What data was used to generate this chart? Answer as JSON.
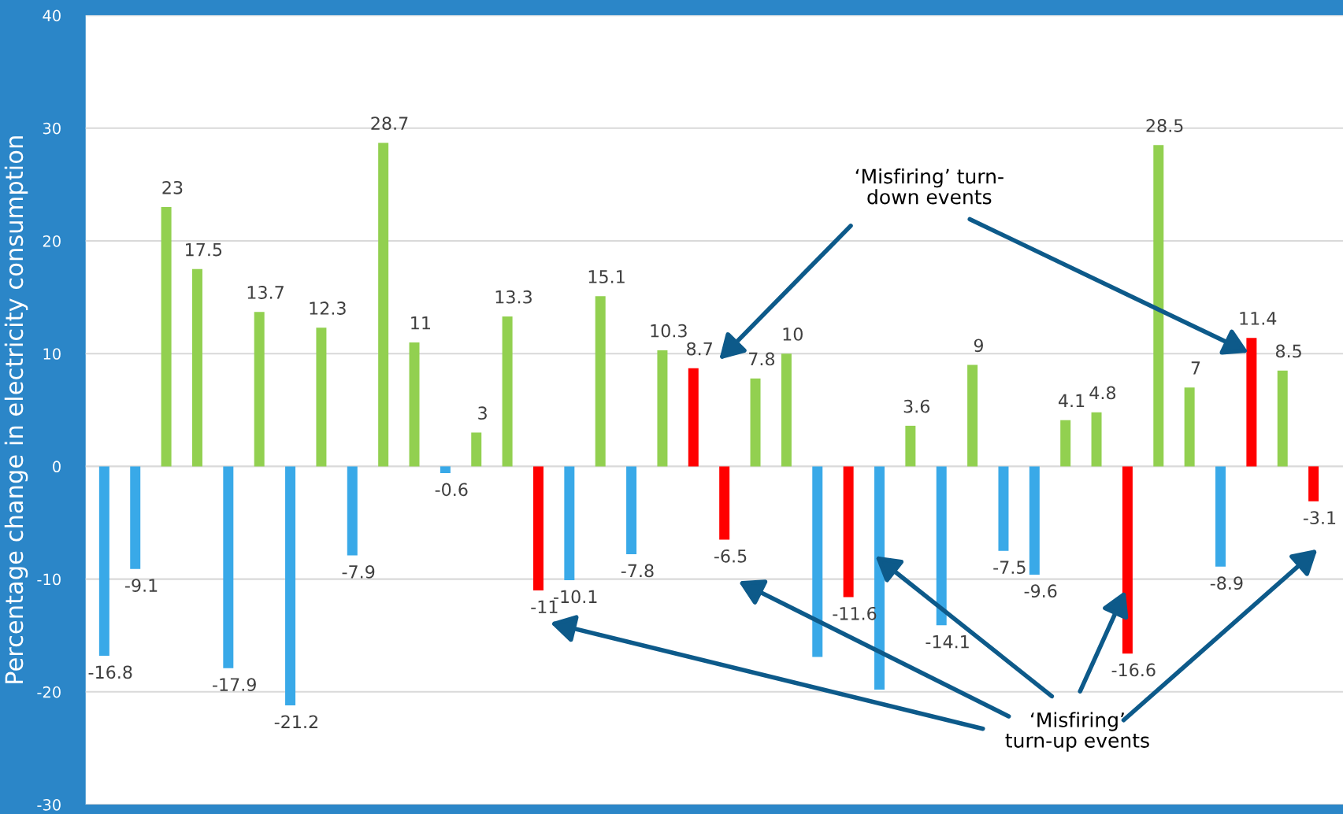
{
  "chart_data": {
    "type": "bar",
    "ylabel": "Percentage change in electricity consumption",
    "categories": [
      null,
      null,
      null,
      null,
      null,
      null,
      null,
      null,
      null,
      null,
      null,
      null,
      null,
      null,
      null,
      null,
      null,
      null,
      null,
      null,
      null,
      null,
      null,
      null,
      null,
      null,
      null,
      null,
      null,
      null,
      null,
      null,
      null,
      null,
      null,
      null,
      null,
      null,
      null,
      null
    ],
    "values": [
      -16.8,
      -9.1,
      23,
      17.5,
      -17.9,
      13.7,
      -21.2,
      12.3,
      -7.9,
      28.7,
      11,
      -0.6,
      3,
      13.3,
      -11,
      -10.1,
      15.1,
      -7.8,
      10.3,
      8.7,
      -6.5,
      7.8,
      10,
      -16.9,
      -11.6,
      -19.8,
      3.6,
      -14.1,
      9,
      -7.5,
      -9.6,
      4.1,
      4.8,
      -16.6,
      28.5,
      7,
      -8.9,
      11.4,
      8.5,
      -3.1
    ],
    "colors": [
      "#39a9e8",
      "#39a9e8",
      "#92d050",
      "#92d050",
      "#39a9e8",
      "#92d050",
      "#39a9e8",
      "#92d050",
      "#39a9e8",
      "#92d050",
      "#92d050",
      "#39a9e8",
      "#92d050",
      "#92d050",
      "#ff0000",
      "#39a9e8",
      "#92d050",
      "#39a9e8",
      "#92d050",
      "#ff0000",
      "#ff0000",
      "#92d050",
      "#92d050",
      "#39a9e8",
      "#ff0000",
      "#39a9e8",
      "#92d050",
      "#39a9e8",
      "#92d050",
      "#39a9e8",
      "#39a9e8",
      "#92d050",
      "#92d050",
      "#ff0000",
      "#92d050",
      "#92d050",
      "#39a9e8",
      "#ff0000",
      "#92d050",
      "#ff0000"
    ],
    "value_labels": [
      "-16.8",
      "-9.1",
      "23",
      "17.5",
      "-17.9",
      "13.7",
      "-21.2",
      "12.3",
      "-7.9",
      "28.7",
      "11",
      "-0.6",
      "3",
      "13.3",
      "-11",
      "-10.1",
      "15.1",
      "-7.8",
      "10.3",
      "8.7",
      "-6.5",
      "7.8",
      "10",
      null,
      "-11.6",
      null,
      "3.6",
      "-14.1",
      "9",
      "-7.5",
      "-9.6",
      "4.1",
      "4.8",
      "-16.6",
      "28.5",
      "7",
      "-8.9",
      "11.4",
      "8.5",
      "-3.1"
    ],
    "ylim": [
      -30,
      40
    ],
    "yticks": [
      -30,
      -20,
      -10,
      0,
      10,
      20,
      30,
      40
    ],
    "grid": "y",
    "annotations": [
      "‘Misfiring’ turn-\ndown events",
      "‘Misfiring’\nturn-up events"
    ]
  }
}
